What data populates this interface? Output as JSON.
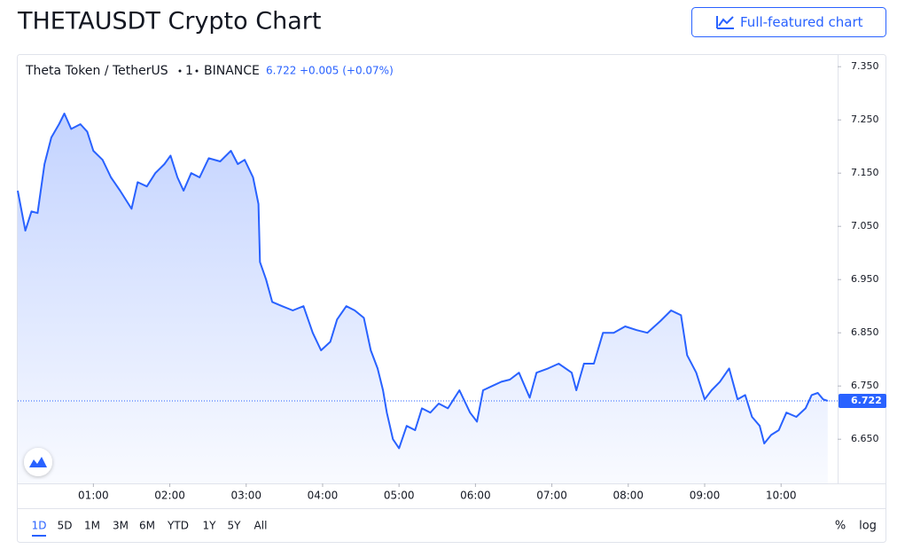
{
  "header": {
    "title": "THETAUSDT Crypto Chart",
    "button": "Full-featured chart"
  },
  "legend": {
    "symbol": "Theta Token / TetherUS",
    "interval": "1",
    "exchange": "BINANCE",
    "change": "+0.005 (+0.07%)"
  },
  "chart_data": {
    "type": "area",
    "color": "#2962ff",
    "x": [
      0.01,
      0.11,
      0.19,
      0.27,
      0.36,
      0.45,
      0.55,
      0.62,
      0.71,
      0.83,
      0.92,
      1.0,
      1.12,
      1.23,
      1.35,
      1.5,
      1.58,
      1.7,
      1.81,
      1.93,
      2.01,
      2.1,
      2.18,
      2.28,
      2.39,
      2.51,
      2.66,
      2.8,
      2.89,
      2.98,
      3.09,
      3.16,
      3.18,
      3.26,
      3.34,
      3.47,
      3.61,
      3.75,
      3.87,
      3.98,
      4.1,
      4.19,
      4.31,
      4.42,
      4.54,
      4.63,
      4.72,
      4.79,
      4.84,
      4.92,
      5.0,
      5.1,
      5.21,
      5.3,
      5.41,
      5.52,
      5.64,
      5.79,
      5.93,
      6.02,
      6.1,
      6.22,
      6.34,
      6.45,
      6.57,
      6.71,
      6.8,
      6.95,
      7.09,
      7.26,
      7.32,
      7.42,
      7.55,
      7.67,
      7.81,
      7.96,
      8.11,
      8.25,
      8.42,
      8.56,
      8.69,
      8.77,
      8.89,
      9.0,
      9.09,
      9.2,
      9.32,
      9.43,
      9.53,
      9.62,
      9.72,
      9.78,
      9.87,
      9.97,
      10.07,
      10.2,
      10.32,
      10.4,
      10.48,
      10.55,
      10.61
    ],
    "values": [
      7.117,
      7.042,
      7.078,
      7.075,
      7.167,
      7.217,
      7.242,
      7.262,
      7.233,
      7.242,
      7.228,
      7.192,
      7.175,
      7.142,
      7.117,
      7.083,
      7.133,
      7.125,
      7.15,
      7.167,
      7.183,
      7.142,
      7.117,
      7.15,
      7.142,
      7.178,
      7.172,
      7.192,
      7.167,
      7.175,
      7.142,
      7.092,
      6.983,
      6.95,
      6.908,
      6.9,
      6.892,
      6.9,
      6.85,
      6.817,
      6.833,
      6.875,
      6.9,
      6.892,
      6.878,
      6.817,
      6.783,
      6.742,
      6.7,
      6.65,
      6.633,
      6.675,
      6.667,
      6.708,
      6.7,
      6.717,
      6.708,
      6.742,
      6.7,
      6.683,
      6.742,
      6.75,
      6.758,
      6.762,
      6.775,
      6.728,
      6.775,
      6.783,
      6.792,
      6.775,
      6.742,
      6.792,
      6.792,
      6.85,
      6.85,
      6.862,
      6.855,
      6.85,
      6.872,
      6.892,
      6.883,
      6.808,
      6.775,
      6.725,
      6.742,
      6.758,
      6.783,
      6.725,
      6.733,
      6.692,
      6.675,
      6.642,
      6.658,
      6.667,
      6.7,
      6.692,
      6.708,
      6.733,
      6.737,
      6.725,
      6.722
    ],
    "last_value": 6.722,
    "xlim": [
      0.01,
      10.74
    ],
    "xticks": [
      {
        "value": 1,
        "label": "01:00"
      },
      {
        "value": 2,
        "label": "02:00"
      },
      {
        "value": 3,
        "label": "03:00"
      },
      {
        "value": 4,
        "label": "04:00"
      },
      {
        "value": 5,
        "label": "05:00"
      },
      {
        "value": 6,
        "label": "06:00"
      },
      {
        "value": 7,
        "label": "07:00"
      },
      {
        "value": 8,
        "label": "08:00"
      },
      {
        "value": 9,
        "label": "09:00"
      },
      {
        "value": 10,
        "label": "10:00"
      }
    ],
    "ylim": [
      6.567,
      7.372
    ],
    "yticks": [
      {
        "value": 6.65,
        "label": "6.650"
      },
      {
        "value": 6.75,
        "label": "6.750"
      },
      {
        "value": 6.85,
        "label": "6.850"
      },
      {
        "value": 6.95,
        "label": "6.950"
      },
      {
        "value": 7.05,
        "label": "7.050"
      },
      {
        "value": 7.15,
        "label": "7.150"
      },
      {
        "value": 7.25,
        "label": "7.250"
      },
      {
        "value": 7.35,
        "label": "7.350"
      }
    ]
  },
  "toolbar": {
    "ranges": [
      "1D",
      "5D",
      "1M",
      "3M",
      "6M",
      "YTD",
      "1Y",
      "5Y",
      "All"
    ],
    "active_range": 0,
    "options": [
      "%",
      "log"
    ]
  }
}
